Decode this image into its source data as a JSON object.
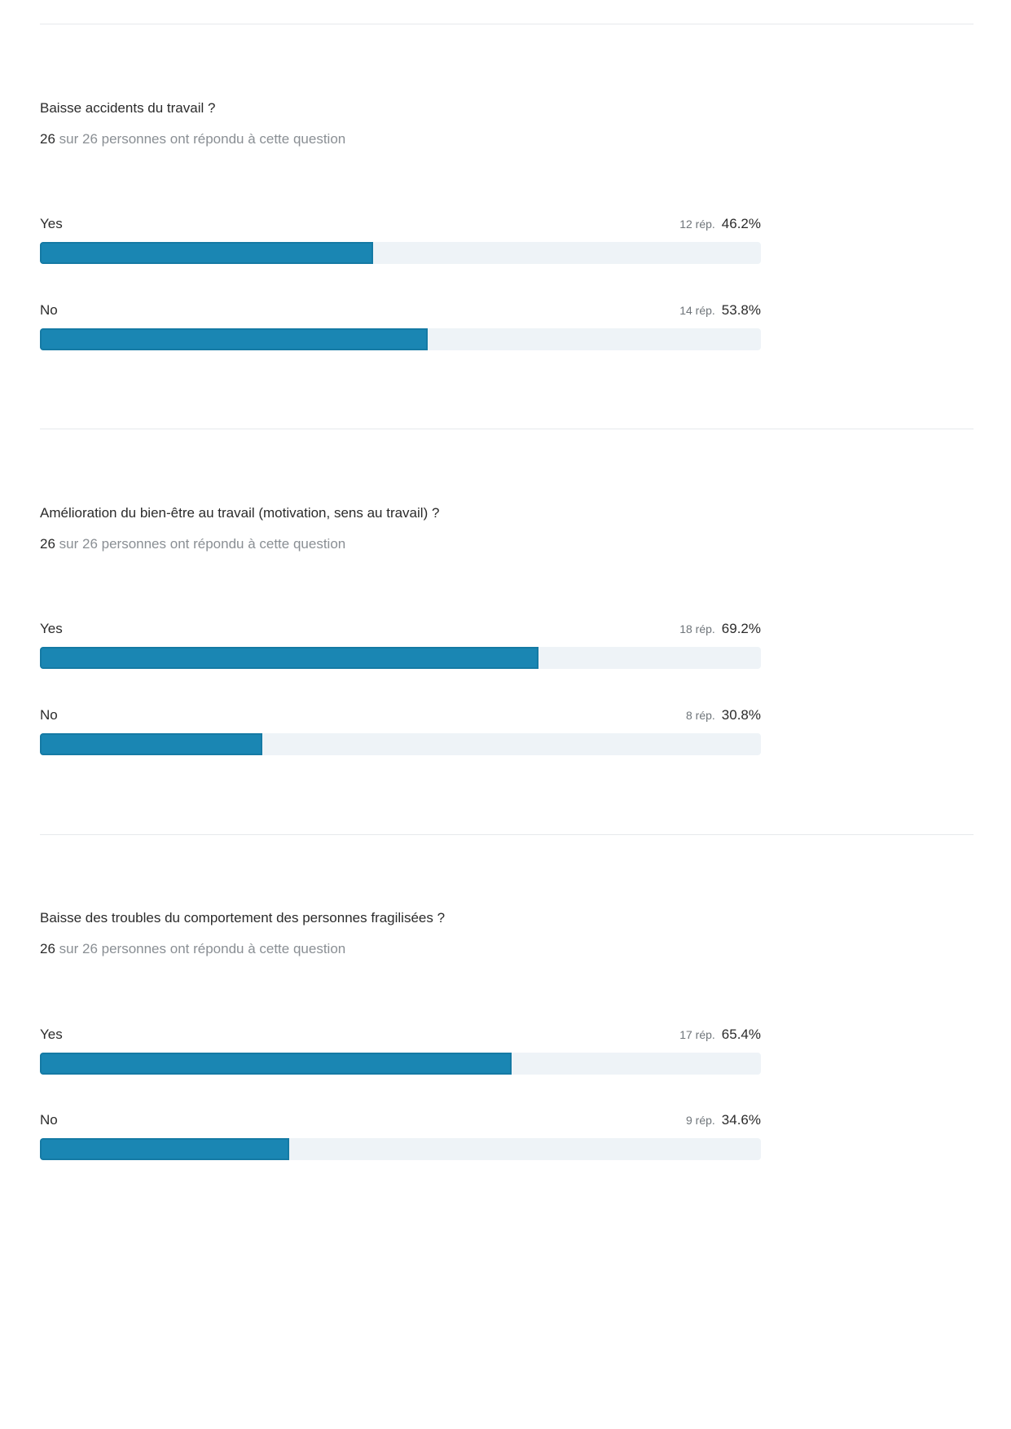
{
  "colors": {
    "bar_fill": "#1a86b3",
    "bar_track": "#eef3f7",
    "divider": "#e6e9ec",
    "muted_text": "#8a8f94"
  },
  "chart_data": [
    {
      "type": "bar",
      "orientation": "horizontal",
      "title": "Baisse accidents du travail ?",
      "subtitle": {
        "count": "26",
        "text": "sur 26 personnes ont répondu à cette question"
      },
      "categories": [
        "Yes",
        "No"
      ],
      "responses": [
        "12 rép.",
        "14 rép."
      ],
      "percent_labels": [
        "46.2%",
        "53.8%"
      ],
      "values": [
        46.2,
        53.8
      ],
      "xlim": [
        0,
        100
      ]
    },
    {
      "type": "bar",
      "orientation": "horizontal",
      "title": "Amélioration du bien-être au travail (motivation, sens au travail) ?",
      "subtitle": {
        "count": "26",
        "text": "sur 26 personnes ont répondu à cette question"
      },
      "categories": [
        "Yes",
        "No"
      ],
      "responses": [
        "18 rép.",
        "8 rép."
      ],
      "percent_labels": [
        "69.2%",
        "30.8%"
      ],
      "values": [
        69.2,
        30.8
      ],
      "xlim": [
        0,
        100
      ]
    },
    {
      "type": "bar",
      "orientation": "horizontal",
      "title": "Baisse des troubles du comportement des personnes fragilisées ?",
      "subtitle": {
        "count": "26",
        "text": "sur 26 personnes ont répondu à cette question"
      },
      "categories": [
        "Yes",
        "No"
      ],
      "responses": [
        "17 rép.",
        "9 rép."
      ],
      "percent_labels": [
        "65.4%",
        "34.6%"
      ],
      "values": [
        65.4,
        34.6
      ],
      "xlim": [
        0,
        100
      ]
    }
  ]
}
